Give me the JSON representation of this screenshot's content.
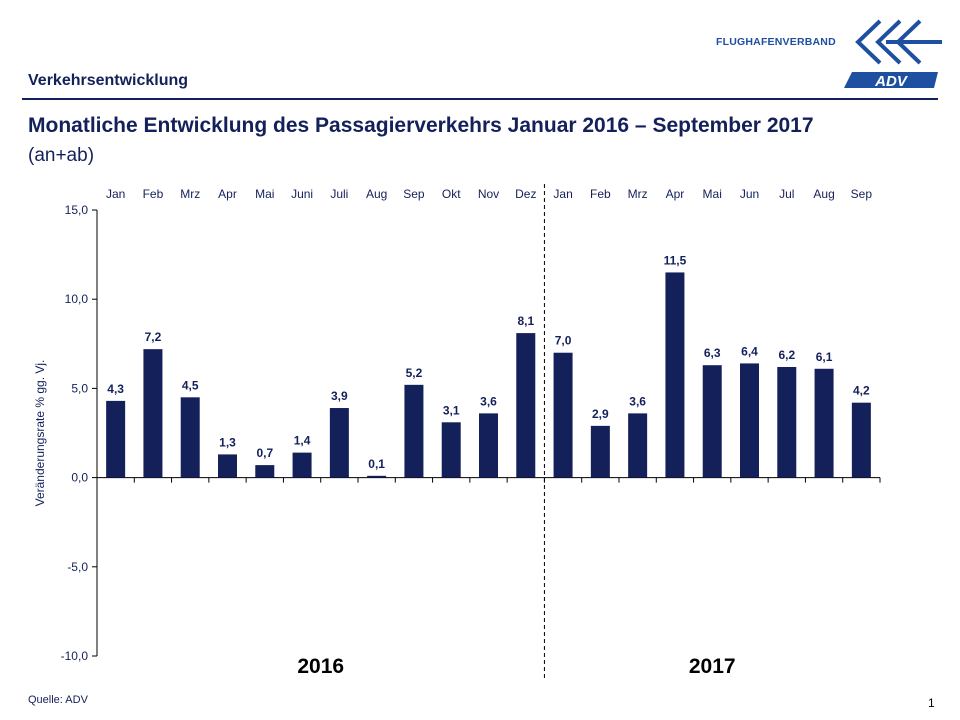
{
  "header": {
    "section_title": "Verkehrsentwicklung",
    "main_title": "Monatliche Entwicklung des Passagierverkehrs  Januar 2016 – September 2017",
    "subtitle": "(an+ab)",
    "org_name": "FLUGHAFENVERBAND",
    "logo_text": "ADV"
  },
  "footer": {
    "source": "Quelle: ADV",
    "page_number": "1"
  },
  "colors": {
    "bar": "#14205a",
    "text": "#14205a",
    "axis": "#000000",
    "logo_blue": "#1f4fa0"
  },
  "chart_data": {
    "type": "bar",
    "title": "Monatliche Entwicklung des Passagierverkehrs  Januar 2016 – September 2017",
    "ylabel": "Veränderungsrate % gg. Vj.",
    "xlabel": "",
    "ylim": [
      -10,
      15
    ],
    "yticks": [
      15,
      10,
      5,
      0,
      -5,
      -10
    ],
    "ytick_labels": [
      "15,0",
      "10,0",
      "5,0",
      "0,0",
      "-5,0",
      "-10,0"
    ],
    "legend": "none",
    "categories": [
      "Jan",
      "Feb",
      "Mrz",
      "Apr",
      "Mai",
      "Juni",
      "Juli",
      "Aug",
      "Sep",
      "Okt",
      "Nov",
      "Dez",
      "Jan",
      "Feb",
      "Mrz",
      "Apr",
      "Mai",
      "Jun",
      "Jul",
      "Aug",
      "Sep"
    ],
    "values": [
      4.3,
      7.2,
      4.5,
      1.3,
      0.7,
      1.4,
      3.9,
      0.1,
      5.2,
      3.1,
      3.6,
      8.1,
      7.0,
      2.9,
      3.6,
      11.5,
      6.3,
      6.4,
      6.2,
      6.1,
      4.2
    ],
    "value_labels": [
      "4,3",
      "7,2",
      "4,5",
      "1,3",
      "0,7",
      "1,4",
      "3,9",
      "0,1",
      "5,2",
      "3,1",
      "3,6",
      "8,1",
      "7,0",
      "2,9",
      "3,6",
      "11,5",
      "6,3",
      "6,4",
      "6,2",
      "6,1",
      "4,2"
    ],
    "year_groups": [
      {
        "label": "2016",
        "start_index": 0,
        "end_index": 11
      },
      {
        "label": "2017",
        "start_index": 12,
        "end_index": 20
      }
    ]
  }
}
